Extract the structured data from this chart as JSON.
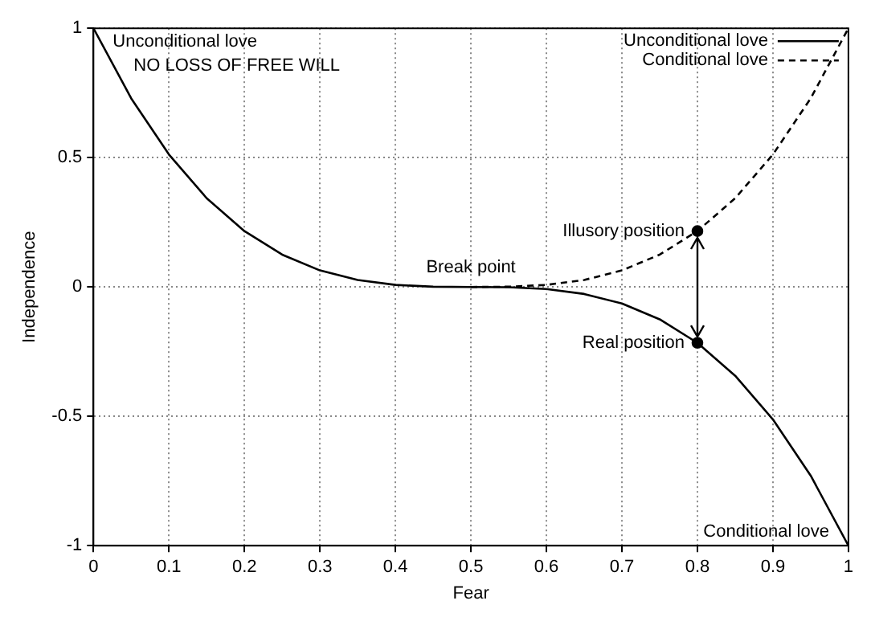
{
  "chart_data": {
    "type": "line",
    "xlabel": "Fear",
    "ylabel": "Independence",
    "xlim": [
      0,
      1
    ],
    "xticks": [
      0,
      0.1,
      0.2,
      0.3,
      0.4,
      0.5,
      0.6,
      0.7,
      0.8,
      0.9,
      1
    ],
    "ylim": [
      -1,
      1
    ],
    "yticks": [
      -1,
      -0.5,
      0,
      0.5,
      1
    ],
    "grid": true,
    "legend": "top right",
    "series": [
      {
        "name": "Unconditional love",
        "color": "#000000",
        "line_style": "solid",
        "marker": "none",
        "x": [
          0,
          0.05,
          0.1,
          0.15,
          0.2,
          0.25,
          0.3,
          0.35,
          0.4,
          0.45,
          0.5,
          0.55,
          0.6,
          0.65,
          0.7,
          0.75,
          0.8,
          0.85,
          0.9,
          0.95,
          1
        ],
        "values": [
          1,
          0.729,
          0.512,
          0.343,
          0.216,
          0.125,
          0.064,
          0.027,
          0.008,
          0.001,
          0,
          -0.001,
          -0.008,
          -0.027,
          -0.064,
          -0.125,
          -0.216,
          -0.343,
          -0.512,
          -0.729,
          -1
        ]
      },
      {
        "name": "Conditional love",
        "color": "#000000",
        "line_style": "dashed",
        "marker": "none",
        "x": [
          0.5,
          0.55,
          0.6,
          0.65,
          0.7,
          0.75,
          0.8,
          0.85,
          0.9,
          0.95,
          1
        ],
        "values": [
          0,
          0.001,
          0.008,
          0.027,
          0.064,
          0.125,
          0.216,
          0.343,
          0.512,
          0.729,
          1
        ]
      },
      {
        "type": "scatter",
        "color": "#000000",
        "marker": "circle",
        "x": [
          0.8,
          0.8
        ],
        "values": [
          0.216,
          -0.216
        ]
      }
    ],
    "annotations": [
      {
        "text": "Unconditional love",
        "x": 0,
        "y": 1
      },
      "NO LOSS OF FREE WILL",
      {
        "text": "Break point",
        "x": 0.5,
        "y": 0
      },
      {
        "text": "Illusory position",
        "x": 0.8,
        "y": 0.216
      },
      {
        "text": "Real position",
        "x": 0.8,
        "y": -0.216
      },
      {
        "text": "Conditional love",
        "x": 1,
        "y": -1
      }
    ]
  }
}
